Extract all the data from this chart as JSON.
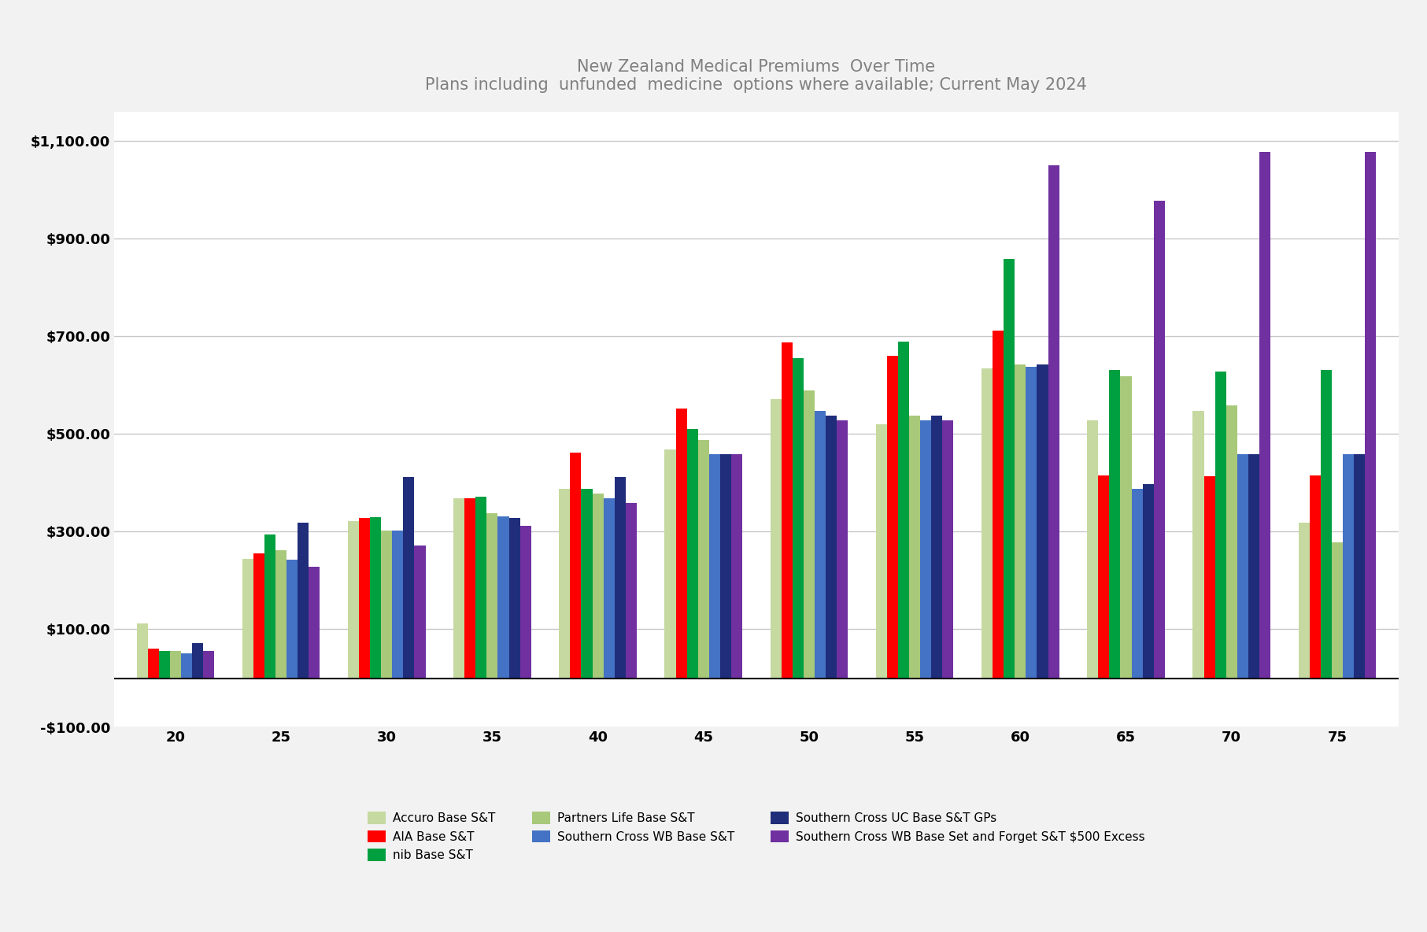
{
  "title_line1": "New Zealand Medical Premiums  Over Time",
  "title_line2": "Plans including  unfunded  medicine  options where available; Current May 2024",
  "categories": [
    20,
    25,
    30,
    35,
    40,
    45,
    50,
    55,
    60,
    65,
    70,
    75
  ],
  "series": [
    {
      "label": "Accuro Base S&T",
      "color": "#c6d9a0",
      "values": [
        112,
        245,
        322,
        368,
        388,
        468,
        572,
        520,
        635,
        528,
        548,
        318
      ]
    },
    {
      "label": "AIA Base S&T",
      "color": "#ff0000",
      "values": [
        60,
        255,
        328,
        368,
        462,
        552,
        688,
        660,
        712,
        415,
        413,
        415
      ]
    },
    {
      "label": "nib Base S&T",
      "color": "#00a040",
      "values": [
        55,
        295,
        330,
        372,
        388,
        510,
        655,
        690,
        858,
        632,
        628,
        632
      ]
    },
    {
      "label": "Partners Life Base S&T",
      "color": "#a8c87a",
      "values": [
        55,
        262,
        302,
        338,
        378,
        488,
        590,
        538,
        642,
        618,
        558,
        278
      ]
    },
    {
      "label": "Southern Cross WB Base S&T",
      "color": "#4472c4",
      "values": [
        50,
        242,
        302,
        332,
        368,
        458,
        548,
        528,
        638,
        388,
        458,
        458
      ]
    },
    {
      "label": "Southern Cross UC Base S&T GPs",
      "color": "#1f2d7a",
      "values": [
        72,
        318,
        412,
        328,
        412,
        458,
        538,
        538,
        642,
        398,
        458,
        458
      ]
    },
    {
      "label": "Southern Cross WB Base Set and Forget S&T $500 Excess",
      "color": "#7030a0",
      "values": [
        55,
        228,
        272,
        312,
        358,
        458,
        528,
        528,
        1050,
        978,
        1078,
        1078
      ]
    }
  ],
  "ylim": [
    -100,
    1160
  ],
  "yticks": [
    -100,
    100,
    300,
    500,
    700,
    900,
    1100
  ],
  "ytick_labels": [
    "-$100.00",
    "$100.00",
    "$300.00",
    "$500.00",
    "$700.00",
    "$900.00",
    "$1,100.00"
  ],
  "grid_color": "#c8c8c8",
  "background_color": "#ffffff",
  "title_color": "#808080",
  "tick_color": "#000000",
  "fig_background": "#f2f2f2",
  "bar_width": 0.105,
  "legend_ncol": 3,
  "title_fontsize": 15,
  "tick_fontsize": 13
}
